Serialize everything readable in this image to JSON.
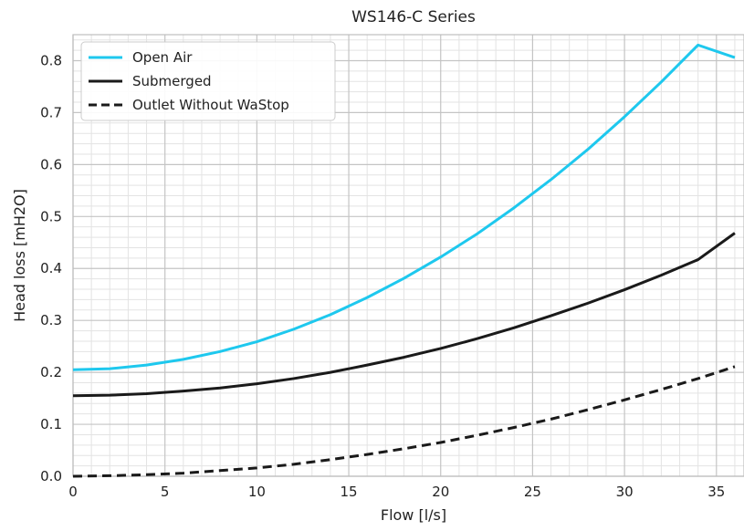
{
  "chart_data": {
    "type": "line",
    "title": "WS146-C Series",
    "xlabel": "Flow [l/s]",
    "ylabel": "Head loss [mH2O]",
    "xlim": [
      0,
      36.5
    ],
    "ylim": [
      0,
      0.85
    ],
    "xticks": [
      0,
      5,
      10,
      15,
      20,
      25,
      30,
      35
    ],
    "yticks": [
      0.0,
      0.1,
      0.2,
      0.3,
      0.4,
      0.5,
      0.6,
      0.7,
      0.8
    ],
    "grid": "major and minor",
    "legend_position": "top-left",
    "x": [
      0,
      2,
      4,
      6,
      8,
      10,
      12,
      14,
      16,
      18,
      20,
      22,
      24,
      26,
      28,
      30,
      32,
      34,
      36
    ],
    "series": [
      {
        "name": "Open Air",
        "color": "#1ec8ee",
        "style": "solid",
        "values": [
          0.205,
          0.207,
          0.214,
          0.225,
          0.24,
          0.259,
          0.283,
          0.311,
          0.344,
          0.381,
          0.422,
          0.467,
          0.517,
          0.571,
          0.629,
          0.692,
          0.759,
          0.83,
          0.806
        ]
      },
      {
        "name": "Submerged",
        "color": "#1a1a1a",
        "style": "solid",
        "values": [
          0.155,
          0.156,
          0.159,
          0.164,
          0.17,
          0.178,
          0.188,
          0.2,
          0.214,
          0.229,
          0.246,
          0.265,
          0.286,
          0.309,
          0.333,
          0.359,
          0.387,
          0.417,
          0.468
        ]
      },
      {
        "name": "Outlet Without WaStop",
        "color": "#1a1a1a",
        "style": "dashed",
        "values": [
          0.0,
          0.001,
          0.003,
          0.006,
          0.011,
          0.016,
          0.023,
          0.032,
          0.042,
          0.053,
          0.065,
          0.079,
          0.094,
          0.11,
          0.128,
          0.147,
          0.167,
          0.188,
          0.211
        ]
      }
    ]
  }
}
